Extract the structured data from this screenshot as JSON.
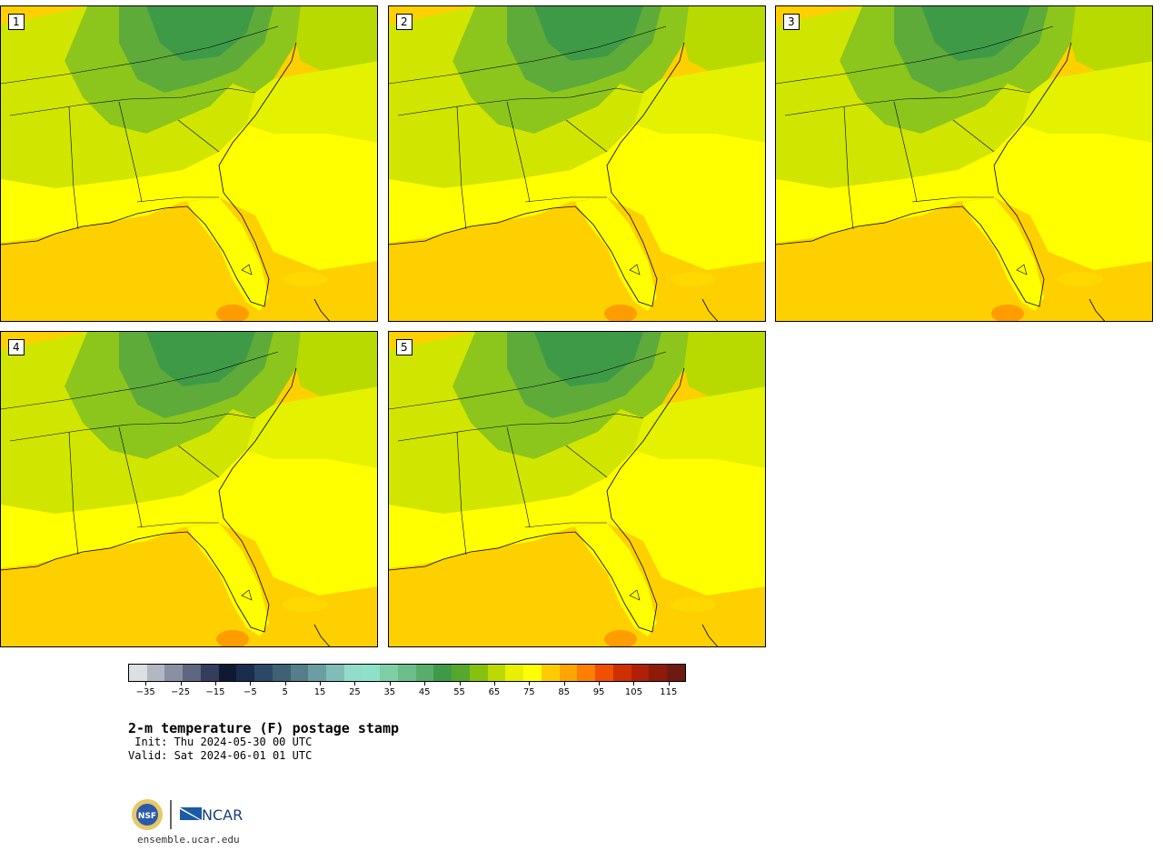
{
  "panels": [
    {
      "label": "1"
    },
    {
      "label": "2"
    },
    {
      "label": "3"
    },
    {
      "label": "4"
    },
    {
      "label": "5"
    }
  ],
  "colorbar": {
    "colors": [
      "#dcdfe4",
      "#b2b7c4",
      "#8a90a3",
      "#5f6681",
      "#343d5c",
      "#0e1a33",
      "#1a2d4d",
      "#2b4866",
      "#3f6176",
      "#567d8a",
      "#6b9ea3",
      "#80bdb8",
      "#92dccc",
      "#8fe0c8",
      "#7fcfa6",
      "#6cbf8a",
      "#58ad6c",
      "#3f9a47",
      "#55a82c",
      "#86c010",
      "#bcd900",
      "#e8f000",
      "#ffff00",
      "#ffcc00",
      "#ffa500",
      "#ff7f00",
      "#f05000",
      "#d03000",
      "#b02008",
      "#8e1a0a",
      "#6e1a10"
    ],
    "tick_values": [
      -35,
      -25,
      -15,
      -5,
      5,
      15,
      25,
      35,
      45,
      55,
      65,
      75,
      85,
      95,
      105,
      115
    ],
    "tick_labels": [
      "−35",
      "−25",
      "−15",
      "−5",
      "5",
      "15",
      "25",
      "35",
      "45",
      "55",
      "65",
      "75",
      "85",
      "95",
      "105",
      "115"
    ],
    "range": [
      -40,
      120
    ]
  },
  "title": "2-m temperature (F) postage stamp",
  "init": " Init: Thu 2024-05-30 00 UTC",
  "valid": "Valid: Sat 2024-06-01 01 UTC",
  "logo": {
    "nsf": "NSF",
    "ncar": "NCAR"
  },
  "url": "ensemble.ucar.edu"
}
